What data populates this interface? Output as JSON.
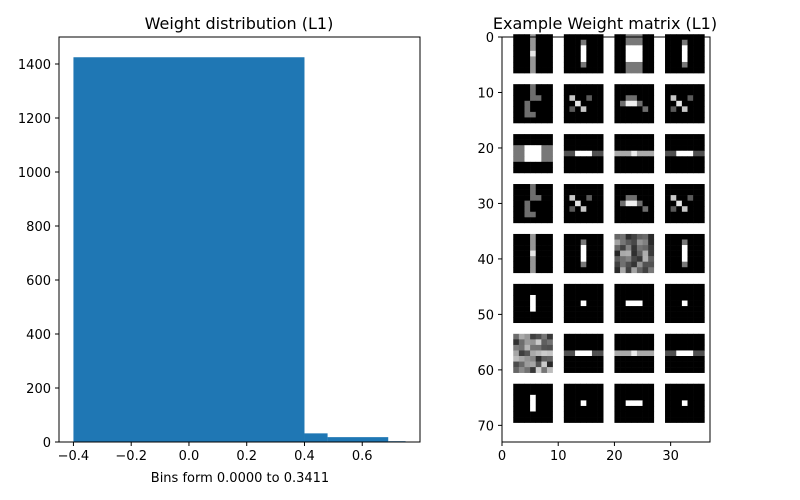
{
  "chart_data": [
    {
      "type": "bar",
      "title": "Weight distribution (L1)",
      "xlabel": "Bins form 0.0000 to 0.3411",
      "ylabel": "",
      "bins": [
        {
          "x0": -0.4,
          "x1": 0.4,
          "count": 1425
        },
        {
          "x0": 0.4,
          "x1": 0.48,
          "count": 32
        },
        {
          "x0": 0.48,
          "x1": 0.69,
          "count": 18
        },
        {
          "x0": 0.69,
          "x1": 0.75,
          "count": 3
        }
      ],
      "xlim": [
        -0.45,
        0.8
      ],
      "ylim": [
        0,
        1500
      ],
      "xticks": [
        -0.4,
        -0.2,
        0.0,
        0.2,
        0.4,
        0.6
      ],
      "xtick_labels": [
        "−0.4",
        "−0.2",
        "0.0",
        "0.2",
        "0.4",
        "0.6"
      ],
      "yticks": [
        0,
        200,
        400,
        600,
        800,
        1000,
        1200,
        1400
      ],
      "ytick_labels": [
        "0",
        "200",
        "400",
        "600",
        "800",
        "1000",
        "1200",
        "1400"
      ],
      "color": "#1f77b4"
    },
    {
      "type": "heatmap",
      "title": "Example Weight matrix (L1)",
      "colormap": "gray",
      "xlim": [
        0,
        37
      ],
      "ylim": [
        73,
        0
      ],
      "xticks": [
        0,
        10,
        20,
        30
      ],
      "xtick_labels": [
        "0",
        "10",
        "20",
        "30"
      ],
      "yticks": [
        0,
        10,
        20,
        30,
        40,
        50,
        60,
        70
      ],
      "ytick_labels": [
        "0",
        "10",
        "20",
        "30",
        "40",
        "50",
        "60",
        "70"
      ],
      "tiles": [
        [
          "vline-thin",
          "vline-short",
          "big-gray-block",
          "vline-short"
        ],
        [
          "diag-left",
          "diag-small",
          "diag-flat",
          "diag-small"
        ],
        [
          "hbar-wide",
          "hline-short",
          "hline-long",
          "hline-short"
        ],
        [
          "diag-left",
          "diag-small",
          "diag-flat",
          "diag-small"
        ],
        [
          "vline-thin",
          "vline-short",
          "noise",
          "vline-short"
        ],
        [
          "vline-mid",
          "dot",
          "hbar-mid",
          "dot"
        ],
        [
          "noise-tall",
          "hline-short",
          "hline-long",
          "hline-short"
        ],
        [
          "vline-mid",
          "dot",
          "hbar-mid",
          "dot"
        ]
      ]
    }
  ]
}
